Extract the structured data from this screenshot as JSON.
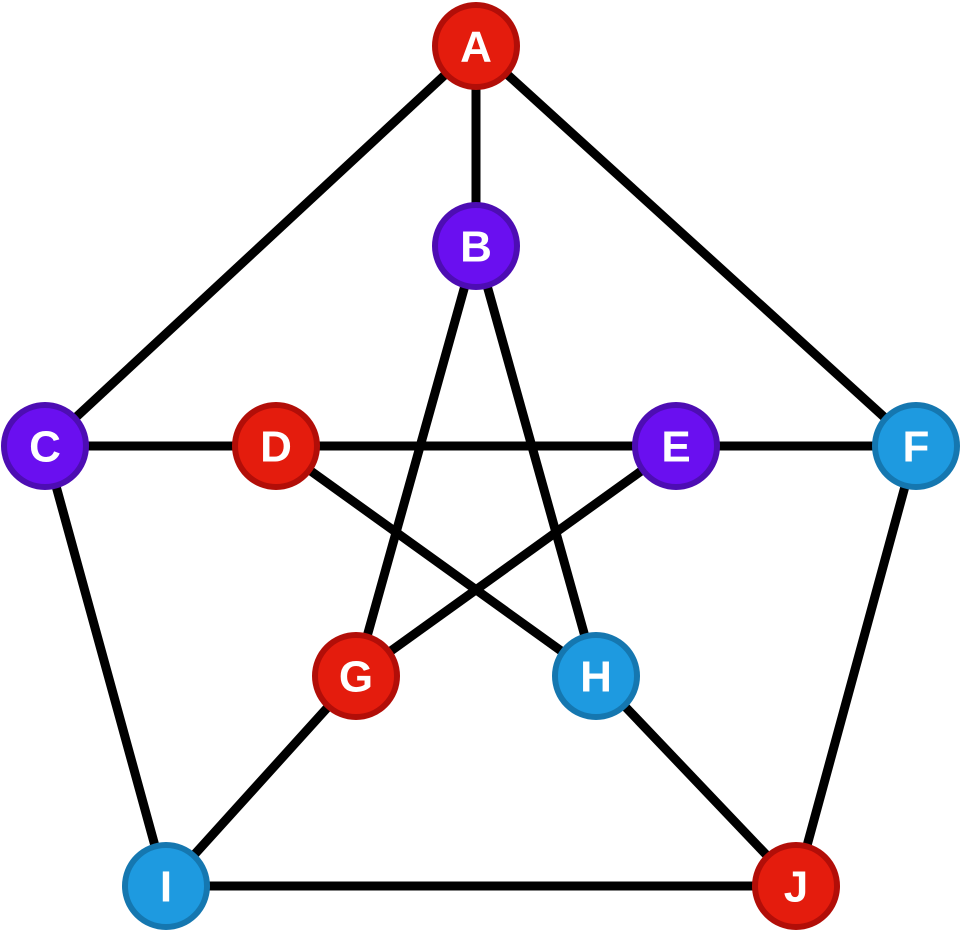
{
  "graph": {
    "nodes": [
      {
        "id": "A",
        "label": "A",
        "color": "red"
      },
      {
        "id": "B",
        "label": "B",
        "color": "purple"
      },
      {
        "id": "C",
        "label": "C",
        "color": "purple"
      },
      {
        "id": "D",
        "label": "D",
        "color": "red"
      },
      {
        "id": "E",
        "label": "E",
        "color": "purple"
      },
      {
        "id": "F",
        "label": "F",
        "color": "blue"
      },
      {
        "id": "G",
        "label": "G",
        "color": "red"
      },
      {
        "id": "H",
        "label": "H",
        "color": "blue"
      },
      {
        "id": "I",
        "label": "I",
        "color": "blue"
      },
      {
        "id": "J",
        "label": "J",
        "color": "red"
      }
    ],
    "edges": [
      [
        "A",
        "B"
      ],
      [
        "A",
        "C"
      ],
      [
        "A",
        "F"
      ],
      [
        "C",
        "D"
      ],
      [
        "D",
        "E"
      ],
      [
        "E",
        "F"
      ],
      [
        "C",
        "I"
      ],
      [
        "F",
        "J"
      ],
      [
        "I",
        "J"
      ],
      [
        "B",
        "G"
      ],
      [
        "B",
        "H"
      ],
      [
        "D",
        "H"
      ],
      [
        "E",
        "G"
      ],
      [
        "G",
        "I"
      ],
      [
        "H",
        "J"
      ]
    ]
  },
  "palette": {
    "red": {
      "fill": "#e41c0d",
      "ring": "#b20e08"
    },
    "purple": {
      "fill": "#6a0ff0",
      "ring": "#4d0db3"
    },
    "blue": {
      "fill": "#1e9ae0",
      "ring": "#1577b0"
    }
  }
}
